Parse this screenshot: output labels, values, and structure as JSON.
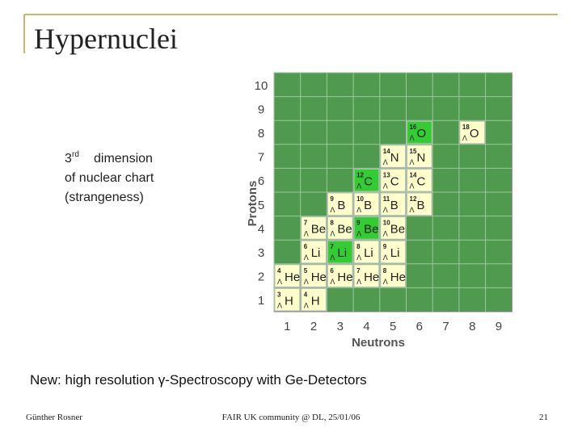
{
  "header": {
    "title": "Hypernuclei"
  },
  "side_note": {
    "number": "3",
    "suffix": "rd",
    "lines": [
      "dimension",
      "of nuclear chart",
      "(strangeness)"
    ]
  },
  "nuclide_chart": {
    "x_label": "Neutrons",
    "y_label": "Protons",
    "xticks": [
      1,
      2,
      3,
      4,
      5,
      6,
      7,
      8,
      9
    ],
    "yticks": [
      1,
      2,
      3,
      4,
      5,
      6,
      7,
      8,
      9,
      10
    ],
    "hyperon": "Λ",
    "background_color": "#4f9a4f",
    "cell_color": "#ffffcc",
    "highlight_color": "#33cc33",
    "nuclides": [
      {
        "n": 1,
        "z": 1,
        "mass": "3",
        "element": "H",
        "highlight": false
      },
      {
        "n": 2,
        "z": 1,
        "mass": "4",
        "element": "H",
        "highlight": false
      },
      {
        "n": 1,
        "z": 2,
        "mass": "4",
        "element": "He",
        "highlight": false
      },
      {
        "n": 2,
        "z": 2,
        "mass": "5",
        "element": "He",
        "highlight": false
      },
      {
        "n": 3,
        "z": 2,
        "mass": "6",
        "element": "He",
        "highlight": false
      },
      {
        "n": 4,
        "z": 2,
        "mass": "7",
        "element": "He",
        "highlight": false
      },
      {
        "n": 5,
        "z": 2,
        "mass": "8",
        "element": "He",
        "highlight": false
      },
      {
        "n": 2,
        "z": 3,
        "mass": "6",
        "element": "Li",
        "highlight": false
      },
      {
        "n": 3,
        "z": 3,
        "mass": "7",
        "element": "Li",
        "highlight": true
      },
      {
        "n": 4,
        "z": 3,
        "mass": "8",
        "element": "Li",
        "highlight": false
      },
      {
        "n": 5,
        "z": 3,
        "mass": "9",
        "element": "Li",
        "highlight": false
      },
      {
        "n": 2,
        "z": 4,
        "mass": "7",
        "element": "Be",
        "highlight": false
      },
      {
        "n": 3,
        "z": 4,
        "mass": "8",
        "element": "Be",
        "highlight": false
      },
      {
        "n": 4,
        "z": 4,
        "mass": "9",
        "element": "Be",
        "highlight": true
      },
      {
        "n": 5,
        "z": 4,
        "mass": "10",
        "element": "Be",
        "highlight": false
      },
      {
        "n": 3,
        "z": 5,
        "mass": "9",
        "element": "B",
        "highlight": false
      },
      {
        "n": 4,
        "z": 5,
        "mass": "10",
        "element": "B",
        "highlight": false
      },
      {
        "n": 5,
        "z": 5,
        "mass": "11",
        "element": "B",
        "highlight": false
      },
      {
        "n": 6,
        "z": 5,
        "mass": "12",
        "element": "B",
        "highlight": false
      },
      {
        "n": 4,
        "z": 6,
        "mass": "12",
        "element": "C",
        "highlight": true
      },
      {
        "n": 5,
        "z": 6,
        "mass": "13",
        "element": "C",
        "highlight": false
      },
      {
        "n": 6,
        "z": 6,
        "mass": "14",
        "element": "C",
        "highlight": false
      },
      {
        "n": 5,
        "z": 7,
        "mass": "14",
        "element": "N",
        "highlight": false
      },
      {
        "n": 6,
        "z": 7,
        "mass": "15",
        "element": "N",
        "highlight": false
      },
      {
        "n": 6,
        "z": 8,
        "mass": "16",
        "element": "O",
        "highlight": true
      },
      {
        "n": 8,
        "z": 8,
        "mass": "18",
        "element": "O",
        "highlight": false
      }
    ]
  },
  "caption": "New: high resolution γ-Spectroscopy with Ge-Detectors",
  "footer": {
    "author": "Günther Rosner",
    "event": "FAIR UK community @ DL, 25/01/06",
    "page": "21"
  }
}
